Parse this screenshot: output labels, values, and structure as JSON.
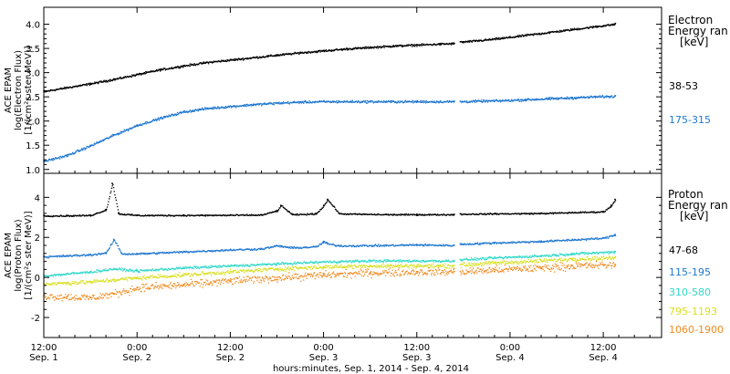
{
  "x_axis": {
    "tick_times": [
      "12:00",
      "0:00",
      "12:00",
      "0:00",
      "12:00",
      "0:00",
      "12:00"
    ],
    "tick_dates": [
      "Sep. 1",
      "Sep. 2",
      "Sep. 2",
      "Sep. 3",
      "Sep. 3",
      "Sep. 4",
      "Sep. 4"
    ],
    "tick_hours": [
      12,
      24,
      36,
      48,
      60,
      72,
      84
    ],
    "range_hours": [
      12,
      91.5
    ],
    "label": "hours:minutes, Sep.  1, 2014 - Sep.  4, 2014"
  },
  "chart_data": [
    {
      "type": "scatter",
      "panel": "electron",
      "ylabel": [
        "ACE EPAM",
        "log(Electron Flux)",
        "[1/(cm²s ster MeV)]"
      ],
      "ylim": [
        0.92,
        4.35
      ],
      "yticks": [
        1.0,
        1.5,
        2.0,
        2.5,
        3.0,
        3.5,
        4.0
      ],
      "ytick_labels": [
        "1.0",
        "1.5",
        "2.0",
        "2.5",
        "3.0",
        "3.5",
        "4.0"
      ],
      "legend_title": [
        "Electron",
        "Energy ran",
        "[keV]"
      ],
      "data_gap_hours": [
        64.8,
        65.6
      ],
      "series": [
        {
          "name": "38-53",
          "color": "#000000",
          "x": [
            12,
            15,
            18,
            21,
            24,
            27,
            30,
            33,
            36,
            39,
            42,
            45,
            48,
            51,
            54,
            57,
            60,
            63,
            64.8,
            65.6,
            68,
            71,
            74,
            77,
            80,
            83,
            85.5
          ],
          "y": [
            2.62,
            2.7,
            2.78,
            2.87,
            2.97,
            3.07,
            3.15,
            3.22,
            3.27,
            3.32,
            3.37,
            3.42,
            3.46,
            3.5,
            3.53,
            3.56,
            3.58,
            3.6,
            3.61,
            3.64,
            3.67,
            3.72,
            3.78,
            3.84,
            3.9,
            3.96,
            4.01
          ]
        },
        {
          "name": "175-315",
          "color": "#1f77d0",
          "x": [
            12,
            15,
            18,
            21,
            24,
            27,
            30,
            33,
            36,
            39,
            42,
            45,
            48,
            51,
            54,
            57,
            60,
            63,
            64.8,
            65.6,
            68,
            71,
            74,
            77,
            80,
            83,
            85.5
          ],
          "y": [
            1.18,
            1.3,
            1.5,
            1.72,
            1.92,
            2.07,
            2.2,
            2.27,
            2.31,
            2.35,
            2.38,
            2.4,
            2.41,
            2.41,
            2.41,
            2.41,
            2.41,
            2.41,
            2.41,
            2.41,
            2.42,
            2.43,
            2.45,
            2.47,
            2.49,
            2.51,
            2.52
          ]
        }
      ]
    },
    {
      "type": "scatter",
      "panel": "proton",
      "ylabel": [
        "ACE EPAM",
        "log(Proton Flux)",
        "[1/(cm²s ster MeV)]"
      ],
      "ylim": [
        -3.0,
        5.2
      ],
      "yticks": [
        -2,
        0,
        2,
        4
      ],
      "ytick_labels": [
        "-2",
        "0",
        "2",
        "4"
      ],
      "legend_title": [
        "Proton",
        "Energy ran",
        "[keV]"
      ],
      "data_gap_hours": [
        64.8,
        65.6
      ],
      "series": [
        {
          "name": "47-68",
          "color": "#000000",
          "x": [
            12,
            15,
            18,
            20,
            20.8,
            21.6,
            24,
            30,
            36,
            40,
            42,
            42.5,
            44,
            47,
            48,
            48.5,
            50,
            56,
            60,
            64.8,
            65.6,
            70,
            76,
            80,
            84,
            85,
            85.5
          ],
          "y": [
            3.1,
            3.1,
            3.12,
            3.4,
            4.7,
            3.2,
            3.12,
            3.12,
            3.13,
            3.14,
            3.35,
            3.6,
            3.15,
            3.2,
            3.6,
            3.9,
            3.2,
            3.16,
            3.16,
            3.16,
            3.18,
            3.2,
            3.22,
            3.26,
            3.3,
            3.6,
            3.9
          ]
        },
        {
          "name": "115-195",
          "color": "#1f77d0",
          "x": [
            12,
            15,
            18,
            20,
            21,
            22,
            24,
            30,
            36,
            40,
            42,
            44,
            47,
            48,
            48.5,
            50,
            56,
            60,
            64.8,
            65.6,
            70,
            76,
            80,
            84,
            85.5
          ],
          "y": [
            1.05,
            1.1,
            1.15,
            1.25,
            1.9,
            1.2,
            1.2,
            1.3,
            1.4,
            1.45,
            1.6,
            1.5,
            1.55,
            1.8,
            1.7,
            1.6,
            1.62,
            1.65,
            1.62,
            1.68,
            1.75,
            1.82,
            1.9,
            1.98,
            2.15
          ]
        },
        {
          "name": "310-580",
          "color": "#2fd7c8",
          "x": [
            12,
            15,
            18,
            21,
            24,
            30,
            36,
            42,
            48,
            54,
            60,
            64.8,
            65.6,
            70,
            76,
            80,
            85.5
          ],
          "y": [
            0.1,
            0.2,
            0.3,
            0.45,
            0.35,
            0.5,
            0.6,
            0.7,
            0.8,
            0.85,
            0.85,
            0.85,
            0.9,
            1.0,
            1.1,
            1.2,
            1.3
          ]
        },
        {
          "name": "795-1193",
          "color": "#d7df1e",
          "x": [
            12,
            15,
            18,
            21,
            24,
            30,
            36,
            42,
            48,
            54,
            60,
            64.8,
            65.6,
            70,
            76,
            80,
            85.5
          ],
          "y": [
            -0.3,
            -0.25,
            -0.2,
            -0.1,
            0.0,
            0.15,
            0.3,
            0.45,
            0.55,
            0.6,
            0.6,
            0.6,
            0.65,
            0.75,
            0.85,
            0.95,
            1.0
          ]
        },
        {
          "name": "1060-1900",
          "color": "#f08a1e",
          "x": [
            12,
            15,
            18,
            21,
            24,
            30,
            36,
            42,
            48,
            54,
            60,
            64.8,
            65.6,
            70,
            76,
            80,
            85.5
          ],
          "y": [
            -0.9,
            -0.95,
            -1.0,
            -0.8,
            -0.5,
            -0.35,
            -0.15,
            0.0,
            0.15,
            0.25,
            0.3,
            0.3,
            0.3,
            0.4,
            0.5,
            0.6,
            0.65
          ]
        }
      ]
    }
  ]
}
